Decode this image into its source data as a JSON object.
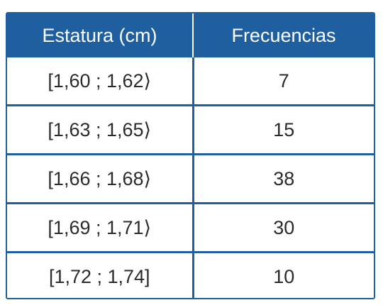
{
  "table": {
    "headers": {
      "interval": "Estatura (cm)",
      "frequency": "Frecuencias"
    },
    "rows": [
      {
        "interval": "[1,60 ; 1,62⟩",
        "frequency": "7"
      },
      {
        "interval": "[1,63 ; 1,65⟩",
        "frequency": "15"
      },
      {
        "interval": "[1,66 ; 1,68⟩",
        "frequency": "38"
      },
      {
        "interval": "[1,69 ; 1,71⟩",
        "frequency": "30"
      },
      {
        "interval": "[1,72 ; 1,74]",
        "frequency": "10"
      }
    ]
  },
  "colors": {
    "header_background": "#1f5fa0",
    "header_text": "#ffffff",
    "grid_lines": "#1f5fa0",
    "cell_text": "#2b2b2b"
  }
}
